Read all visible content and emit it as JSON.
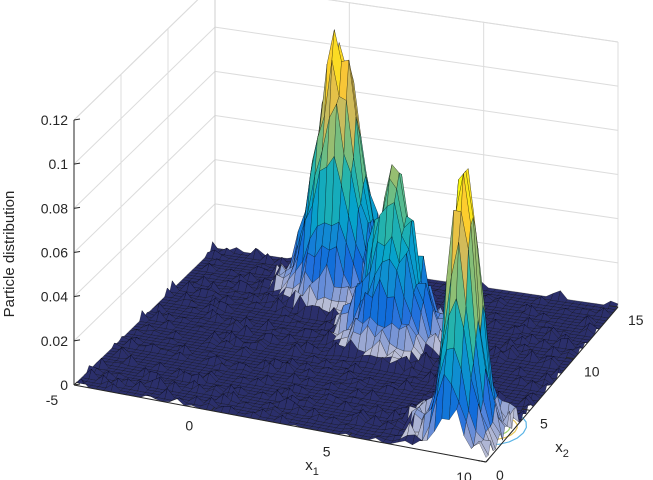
{
  "chart_data": {
    "type": "surface",
    "title": "",
    "xlabel": "x",
    "xlabel_sub": "1",
    "ylabel": "x",
    "ylabel_sub": "2",
    "zlabel": "Particle distribution",
    "xlim": [
      -5,
      10
    ],
    "ylim": [
      0,
      15
    ],
    "zlim": [
      0,
      0.12
    ],
    "x_ticks": [
      "-5",
      "0",
      "5",
      "10"
    ],
    "y_ticks": [
      "0",
      "5",
      "10",
      "15"
    ],
    "z_ticks": [
      "0",
      "0.02",
      "0.04",
      "0.06",
      "0.08",
      "0.1",
      "0.12"
    ],
    "grid": true,
    "colormap": [
      "#352a87",
      "#0f5cdd",
      "#1481d6",
      "#06a4ca",
      "#2eb7a4",
      "#87bf77",
      "#d1bb59",
      "#fec832",
      "#f9fb0e"
    ],
    "edge_color": "#000000",
    "peaks": [
      {
        "x1": 0.5,
        "x2": 12.5,
        "height": 0.105
      },
      {
        "x1": 3.7,
        "x2": 9.0,
        "height": 0.062
      },
      {
        "x1": 8.6,
        "x2": 1.8,
        "height": 0.113
      }
    ],
    "contour_region": {
      "x1": 9.5,
      "x2": 3.0
    }
  }
}
